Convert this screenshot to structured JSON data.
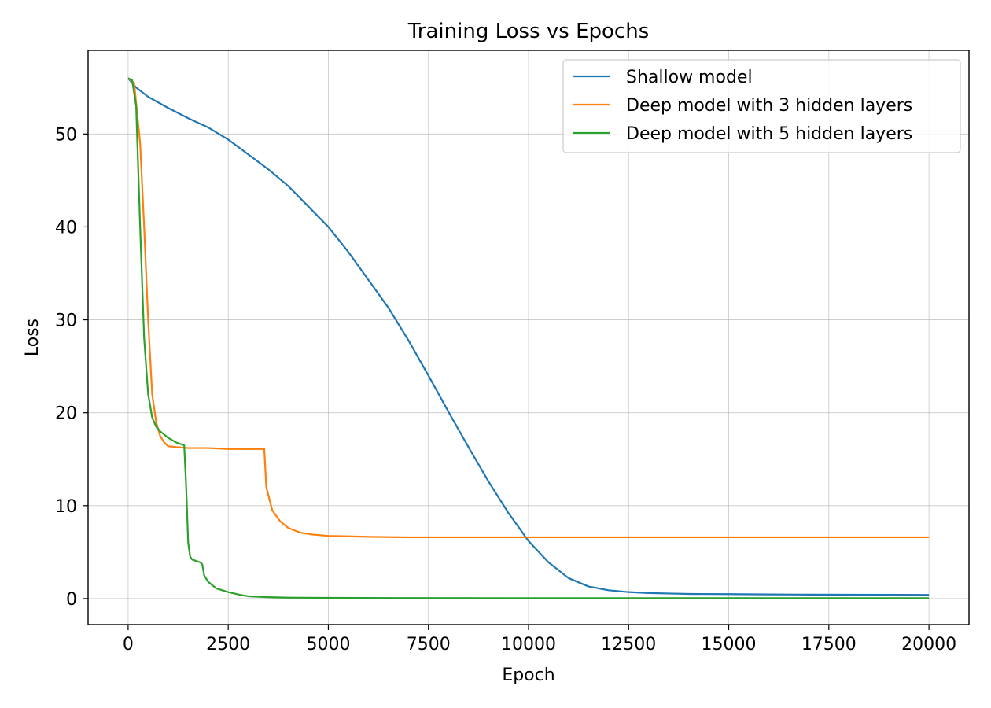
{
  "chart_data": {
    "type": "line",
    "title": "Training Loss vs Epochs",
    "xlabel": "Epoch",
    "ylabel": "Loss",
    "xlim": [
      -1000,
      21000
    ],
    "ylim": [
      -2.8,
      59
    ],
    "xticks": [
      0,
      2500,
      5000,
      7500,
      10000,
      12500,
      15000,
      17500,
      20000
    ],
    "xtick_labels": [
      "0",
      "2500",
      "5000",
      "7500",
      "10000",
      "12500",
      "15000",
      "17500",
      "20000"
    ],
    "yticks": [
      0,
      10,
      20,
      30,
      40,
      50
    ],
    "ytick_labels": [
      "0",
      "10",
      "20",
      "30",
      "40",
      "50"
    ],
    "grid": true,
    "legend_position": "top-right",
    "series": [
      {
        "name": "Shallow model",
        "color": "#1f77b4",
        "x": [
          0,
          200,
          500,
          1000,
          1500,
          2000,
          2500,
          3000,
          3500,
          4000,
          4500,
          5000,
          5500,
          6000,
          6500,
          7000,
          7500,
          8000,
          8500,
          9000,
          9500,
          10000,
          10500,
          11000,
          11500,
          12000,
          12500,
          13000,
          13500,
          14000,
          15000,
          16000,
          17000,
          18000,
          19000,
          20000
        ],
        "y": [
          56,
          55,
          54,
          52.8,
          51.7,
          50.7,
          49.4,
          47.8,
          46.2,
          44.4,
          42.2,
          40,
          37.3,
          34.3,
          31.3,
          27.8,
          24,
          20.1,
          16.3,
          12.6,
          9.2,
          6.2,
          3.9,
          2.2,
          1.3,
          0.9,
          0.7,
          0.6,
          0.55,
          0.5,
          0.48,
          0.45,
          0.43,
          0.42,
          0.41,
          0.4
        ]
      },
      {
        "name": "Deep model with 3 hidden layers",
        "color": "#ff7f0e",
        "x": [
          0,
          150,
          300,
          400,
          500,
          600,
          700,
          800,
          900,
          1000,
          1200,
          1500,
          2000,
          2500,
          3000,
          3400,
          3450,
          3600,
          3800,
          4000,
          4300,
          4600,
          5000,
          5500,
          6000,
          7000,
          8000,
          10000,
          12000,
          15000,
          17500,
          20000
        ],
        "y": [
          56,
          55.5,
          49,
          40,
          30,
          22,
          19,
          17.5,
          16.8,
          16.4,
          16.3,
          16.2,
          16.2,
          16.1,
          16.1,
          16.1,
          12,
          9.5,
          8.3,
          7.6,
          7.1,
          6.9,
          6.75,
          6.7,
          6.65,
          6.6,
          6.6,
          6.6,
          6.6,
          6.6,
          6.6,
          6.6
        ]
      },
      {
        "name": "Deep model with 5 hidden layers",
        "color": "#2ca02c",
        "x": [
          0,
          100,
          200,
          300,
          400,
          500,
          600,
          700,
          800,
          1000,
          1200,
          1400,
          1450,
          1500,
          1550,
          1600,
          1800,
          1850,
          1900,
          2000,
          2200,
          2500,
          2800,
          3000,
          3500,
          4000,
          5000,
          7000,
          10000,
          15000,
          20000
        ],
        "y": [
          56,
          55.8,
          53,
          40,
          28,
          22,
          19.5,
          18.5,
          18,
          17.3,
          16.8,
          16.5,
          12,
          6,
          4.5,
          4.2,
          3.9,
          3.7,
          2.5,
          1.8,
          1.1,
          0.7,
          0.4,
          0.25,
          0.15,
          0.1,
          0.08,
          0.06,
          0.05,
          0.05,
          0.05
        ]
      }
    ]
  }
}
